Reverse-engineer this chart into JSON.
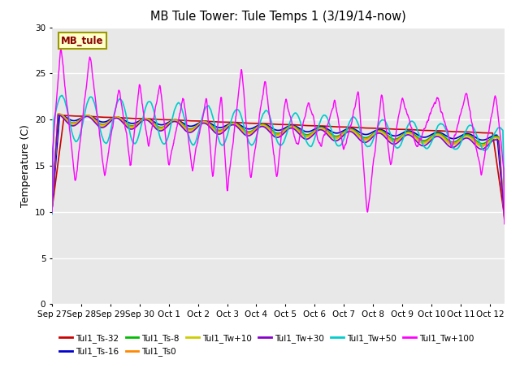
{
  "title": "MB Tule Tower: Tule Temps 1 (3/19/14-now)",
  "ylabel": "Temperature (C)",
  "bg_color": "#e8e8e8",
  "fig_bg": "#ffffff",
  "ylim": [
    0,
    30
  ],
  "yticks": [
    0,
    5,
    10,
    15,
    20,
    25,
    30
  ],
  "legend_box_label": "MB_tule",
  "series": [
    {
      "label": "Tul1_Ts-32",
      "color": "#cc0000"
    },
    {
      "label": "Tul1_Ts-16",
      "color": "#0000cc"
    },
    {
      "label": "Tul1_Ts-8",
      "color": "#00bb00"
    },
    {
      "label": "Tul1_Ts0",
      "color": "#ff8800"
    },
    {
      "label": "Tul1_Tw+10",
      "color": "#cccc00"
    },
    {
      "label": "Tul1_Tw+30",
      "color": "#8800cc"
    },
    {
      "label": "Tul1_Tw+50",
      "color": "#00cccc"
    },
    {
      "label": "Tul1_Tw+100",
      "color": "#ff00ff"
    }
  ],
  "xtick_labels": [
    "Sep 27",
    "Sep 28",
    "Sep 29",
    "Sep 30",
    "Oct 1",
    "Oct 2",
    "Oct 3",
    "Oct 4",
    "Oct 5",
    "Oct 6",
    "Oct 7",
    "Oct 8",
    "Oct 9",
    "Oct 10",
    "Oct 11",
    "Oct 12"
  ],
  "legend_order": [
    [
      "Tul1_Ts-32",
      "Tul1_Ts-16",
      "Tul1_Ts-8",
      "Tul1_Ts0",
      "Tul1_Tw+10",
      "Tul1_Tw+30"
    ],
    [
      "Tul1_Tw+50",
      "Tul1_Tw+100"
    ]
  ]
}
